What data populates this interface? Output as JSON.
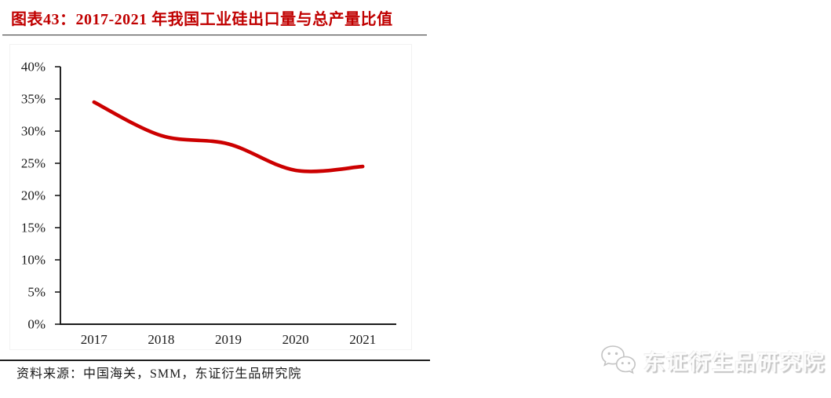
{
  "header": {
    "title": "图表43：2017-2021 年我国工业硅出口量与总产量比值",
    "title_color": "#c00000"
  },
  "chart_data": {
    "type": "line",
    "categories": [
      "2017",
      "2018",
      "2019",
      "2020",
      "2021"
    ],
    "values": [
      34.5,
      29.3,
      28.0,
      23.9,
      24.5
    ],
    "y_ticks": [
      "0%",
      "5%",
      "10%",
      "15%",
      "20%",
      "25%",
      "30%",
      "35%",
      "40%"
    ],
    "y_tick_step": 5,
    "ylim": [
      0,
      40
    ],
    "xlabel": "",
    "ylabel": "",
    "grid": "off",
    "legend": "none",
    "line_color": "#cc0000",
    "axis_color": "#1a1a1a"
  },
  "footer": {
    "source_text": "资料来源：中国海关，SMM，东证衍生品研究院"
  },
  "watermark": {
    "icon": "wechat-chat-bubbles-icon",
    "text": "东证衍生品研究院"
  }
}
